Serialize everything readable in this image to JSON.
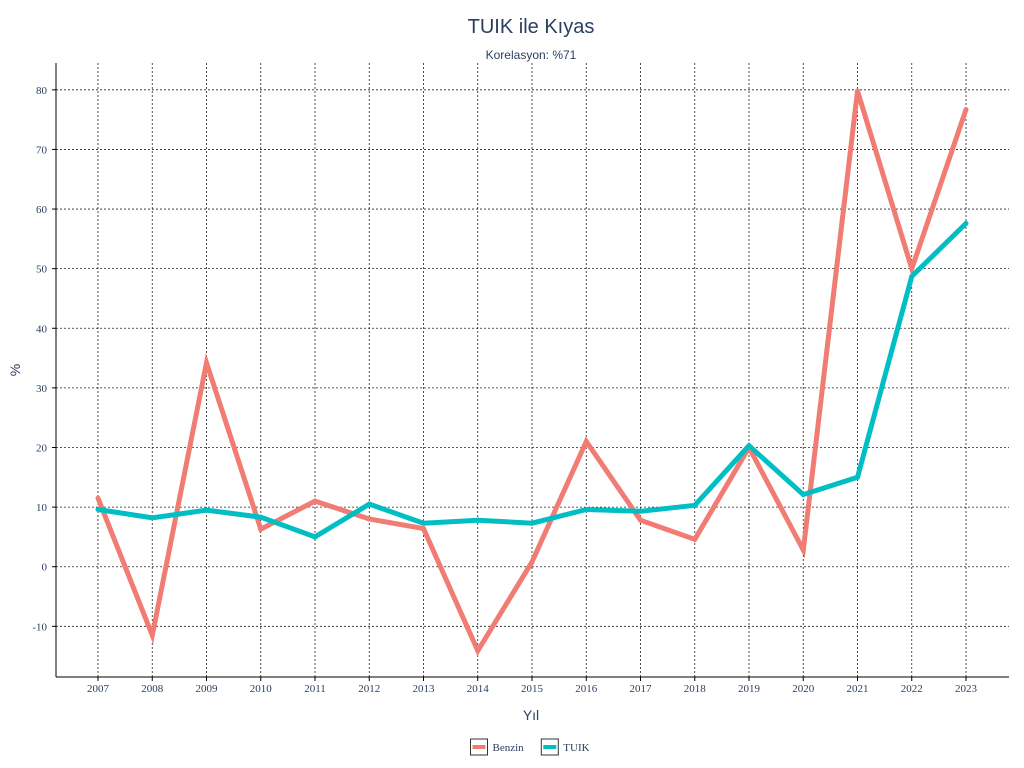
{
  "chart_data": {
    "type": "line",
    "title": "TUIK ile Kıyas",
    "subtitle": "Korelasyon: %71",
    "xlabel": "Yıl",
    "ylabel": "%",
    "categories": [
      "2007",
      "2008",
      "2009",
      "2010",
      "2011",
      "2012",
      "2013",
      "2014",
      "2015",
      "2016",
      "2017",
      "2018",
      "2019",
      "2020",
      "2021",
      "2022",
      "2023"
    ],
    "yticks": [
      -10,
      0,
      10,
      20,
      30,
      40,
      50,
      60,
      70,
      80
    ],
    "ylim": [
      -18.5,
      84.5
    ],
    "grid": true,
    "legend_position": "bottom",
    "series": [
      {
        "name": "Benzin",
        "color": "#f07c74",
        "values": [
          11.5,
          -11.5,
          34.2,
          6.3,
          11.0,
          8.0,
          6.4,
          -14.1,
          0.8,
          21.0,
          7.8,
          4.6,
          20.0,
          2.8,
          79.8,
          50.0,
          76.7
        ]
      },
      {
        "name": "TUIK",
        "color": "#00bfc4",
        "values": [
          9.6,
          8.2,
          9.5,
          8.3,
          5.0,
          10.5,
          7.3,
          7.8,
          7.3,
          9.6,
          9.3,
          10.3,
          20.3,
          12.1,
          15.0,
          48.7,
          57.6
        ]
      }
    ]
  }
}
